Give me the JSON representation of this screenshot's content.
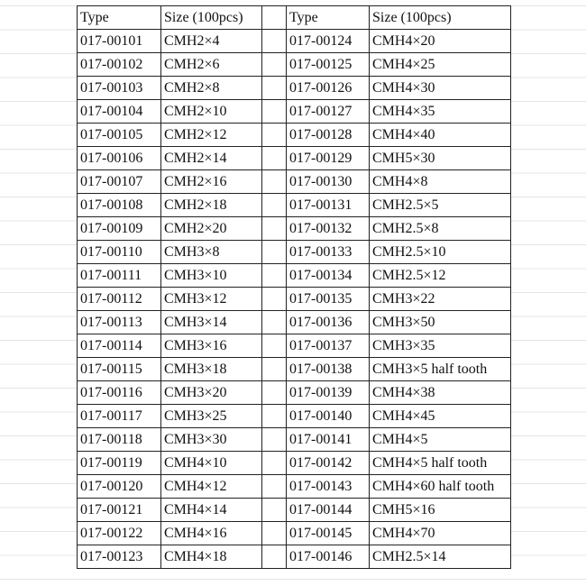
{
  "headers": [
    "Type",
    "Size (100pcs)",
    "",
    "Type",
    "Size (100pcs)"
  ],
  "left_rows": [
    [
      "017-00101",
      "CMH2×4"
    ],
    [
      "017-00102",
      "CMH2×6"
    ],
    [
      "017-00103",
      "CMH2×8"
    ],
    [
      "017-00104",
      "CMH2×10"
    ],
    [
      "017-00105",
      "CMH2×12"
    ],
    [
      "017-00106",
      "CMH2×14"
    ],
    [
      "017-00107",
      "CMH2×16"
    ],
    [
      "017-00108",
      "CMH2×18"
    ],
    [
      "017-00109",
      "CMH2×20"
    ],
    [
      "017-00110",
      "CMH3×8"
    ],
    [
      "017-00111",
      "CMH3×10"
    ],
    [
      "017-00112",
      "CMH3×12"
    ],
    [
      "017-00113",
      "CMH3×14"
    ],
    [
      "017-00114",
      "CMH3×16"
    ],
    [
      "017-00115",
      "CMH3×18"
    ],
    [
      "017-00116",
      "CMH3×20"
    ],
    [
      "017-00117",
      "CMH3×25"
    ],
    [
      "017-00118",
      "CMH3×30"
    ],
    [
      "017-00119",
      "CMH4×10"
    ],
    [
      "017-00120",
      "CMH4×12"
    ],
    [
      "017-00121",
      "CMH4×14"
    ],
    [
      "017-00122",
      "CMH4×16"
    ],
    [
      "017-00123",
      "CMH4×18"
    ]
  ],
  "right_rows": [
    [
      "017-00124",
      "CMH4×20"
    ],
    [
      "017-00125",
      "CMH4×25"
    ],
    [
      "017-00126",
      "CMH4×30"
    ],
    [
      "017-00127",
      "CMH4×35"
    ],
    [
      "017-00128",
      "CMH4×40"
    ],
    [
      "017-00129",
      "CMH5×30"
    ],
    [
      "017-00130",
      "CMH4×8"
    ],
    [
      "017-00131",
      "CMH2.5×5"
    ],
    [
      "017-00132",
      "CMH2.5×8"
    ],
    [
      "017-00133",
      "CMH2.5×10"
    ],
    [
      "017-00134",
      "CMH2.5×12"
    ],
    [
      "017-00135",
      "CMH3×22"
    ],
    [
      "017-00136",
      "CMH3×50"
    ],
    [
      "017-00137",
      "CMH3×35"
    ],
    [
      "017-00138",
      "CMH3×5 half tooth"
    ],
    [
      "017-00139",
      "CMH4×38"
    ],
    [
      "017-00140",
      "CMH4×45"
    ],
    [
      "017-00141",
      "CMH4×5"
    ],
    [
      "017-00142",
      "CMH4×5 half tooth"
    ],
    [
      "017-00143",
      "CMH4×60 half tooth"
    ],
    [
      "017-00144",
      "CMH5×16"
    ],
    [
      "017-00145",
      "CMH4×70"
    ],
    [
      "017-00146",
      "CMH2.5×14"
    ]
  ]
}
